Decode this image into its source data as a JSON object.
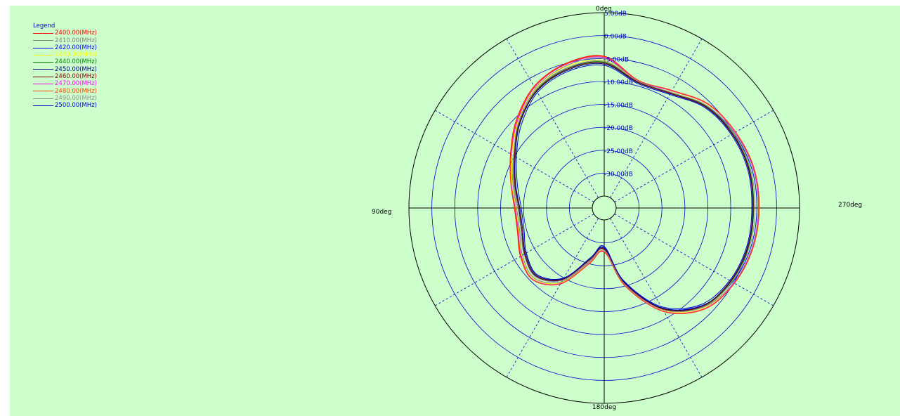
{
  "chart_data": {
    "type": "polar-line",
    "legend_title": "Legend",
    "legend_position": "top-left",
    "angle_labels": {
      "top": "0deg",
      "left": "90deg",
      "bottom": "180deg",
      "right": "270deg"
    },
    "angle_direction": "counter-clockwise from top (90deg on the left)",
    "radial_range_db": [
      -35,
      5
    ],
    "radial_ticks_db": [
      5,
      0,
      -5,
      -10,
      -15,
      -20,
      -25,
      -30
    ],
    "radial_tick_labels": [
      "5.00dB",
      "0.00dB",
      "-5.00dB",
      "-10.00dB",
      "-15.00dB",
      "-20.00dB",
      "-25.00dB",
      "-30.00dB"
    ],
    "grid": true,
    "angles_deg": [
      0,
      15,
      30,
      45,
      60,
      75,
      90,
      105,
      120,
      135,
      150,
      165,
      180,
      195,
      210,
      225,
      240,
      255,
      270,
      285,
      300,
      315,
      330,
      345
    ],
    "series": [
      {
        "name": "2400.00(MHz)",
        "color": "#ff0000",
        "values": [
          -4.5,
          -5.0,
          -7.0,
          -10.5,
          -14.0,
          -16.5,
          -18.0,
          -18.0,
          -16.5,
          -15.5,
          -18.5,
          -25.0,
          -28.0,
          -20.0,
          -11.5,
          -6.5,
          -4.8,
          -4.0,
          -3.8,
          -3.8,
          -4.5,
          -5.5,
          -8.0,
          -8.8
        ]
      },
      {
        "name": "2410.00(MHz)",
        "color": "#808080",
        "values": [
          -5.0,
          -5.5,
          -7.5,
          -11.0,
          -14.5,
          -17.0,
          -18.5,
          -18.5,
          -17.0,
          -16.0,
          -19.0,
          -25.5,
          -28.5,
          -20.5,
          -12.0,
          -7.0,
          -5.0,
          -4.2,
          -4.0,
          -4.0,
          -4.8,
          -6.0,
          -8.5,
          -9.0
        ]
      },
      {
        "name": "2420.00(MHz)",
        "color": "#0000ff",
        "values": [
          -6.0,
          -6.0,
          -7.8,
          -11.2,
          -15.0,
          -17.5,
          -19.0,
          -19.0,
          -17.5,
          -16.5,
          -19.5,
          -26.0,
          -29.0,
          -21.0,
          -12.5,
          -7.5,
          -5.3,
          -4.5,
          -4.3,
          -4.3,
          -5.0,
          -6.2,
          -8.7,
          -9.2
        ]
      },
      {
        "name": "2430.00(MHz)",
        "color": "#ffff00",
        "values": [
          -5.5,
          -5.7,
          -7.6,
          -11.0,
          -14.5,
          -16.8,
          -18.3,
          -18.3,
          -16.8,
          -15.8,
          -18.8,
          -25.2,
          -28.2,
          -20.2,
          -11.8,
          -6.8,
          -4.9,
          -4.1,
          -3.9,
          -3.9,
          -4.6,
          -5.7,
          -8.2,
          -8.9
        ]
      },
      {
        "name": "2440.00(MHz)",
        "color": "#008000",
        "values": [
          -5.8,
          -6.2,
          -8.0,
          -11.5,
          -14.8,
          -17.2,
          -18.8,
          -19.0,
          -17.6,
          -16.6,
          -19.6,
          -26.0,
          -28.6,
          -20.6,
          -12.2,
          -7.2,
          -5.6,
          -5.0,
          -5.0,
          -4.8,
          -5.2,
          -6.2,
          -8.6,
          -9.1
        ]
      },
      {
        "name": "2450.00(MHz)",
        "color": "#000080",
        "values": [
          -6.2,
          -6.5,
          -8.2,
          -11.6,
          -15.2,
          -17.6,
          -19.2,
          -19.2,
          -17.8,
          -16.8,
          -19.8,
          -26.2,
          -28.8,
          -20.8,
          -12.4,
          -7.4,
          -5.8,
          -5.2,
          -5.2,
          -5.0,
          -5.4,
          -6.4,
          -8.8,
          -9.3
        ]
      },
      {
        "name": "2460.00(MHz)",
        "color": "#800000",
        "values": [
          -6.0,
          -6.3,
          -8.1,
          -11.4,
          -15.0,
          -17.4,
          -19.0,
          -19.0,
          -17.6,
          -16.6,
          -19.6,
          -26.0,
          -28.6,
          -20.6,
          -12.2,
          -7.3,
          -5.7,
          -5.1,
          -5.1,
          -4.9,
          -5.3,
          -6.3,
          -8.7,
          -9.2
        ]
      },
      {
        "name": "2470.00(MHz)",
        "color": "#ff00ff",
        "values": [
          -4.8,
          -5.2,
          -7.2,
          -10.8,
          -14.2,
          -16.6,
          -18.2,
          -18.2,
          -16.7,
          -15.6,
          -18.6,
          -25.1,
          -28.1,
          -20.1,
          -11.6,
          -6.6,
          -4.9,
          -4.1,
          -3.9,
          -3.9,
          -4.6,
          -5.6,
          -8.1,
          -8.9
        ]
      },
      {
        "name": "2480.00(MHz)",
        "color": "#ff4400",
        "values": [
          -4.6,
          -5.1,
          -7.1,
          -10.6,
          -14.1,
          -16.5,
          -18.1,
          -18.1,
          -16.6,
          -15.5,
          -18.5,
          -25.0,
          -28.0,
          -20.0,
          -11.5,
          -6.5,
          -4.8,
          -4.0,
          -3.8,
          -3.8,
          -4.5,
          -5.5,
          -8.0,
          -8.8
        ]
      },
      {
        "name": "2490.00(MHz)",
        "color": "#909090",
        "values": [
          -5.6,
          -6.0,
          -7.8,
          -11.2,
          -14.8,
          -17.2,
          -18.8,
          -18.8,
          -17.4,
          -16.4,
          -19.4,
          -25.8,
          -28.4,
          -20.4,
          -12.0,
          -7.1,
          -5.4,
          -4.8,
          -4.7,
          -4.6,
          -5.0,
          -6.0,
          -8.5,
          -9.0
        ]
      },
      {
        "name": "2500.00(MHz)",
        "color": "#0000cc",
        "values": [
          -6.5,
          -6.8,
          -8.5,
          -12.0,
          -15.5,
          -18.0,
          -19.5,
          -19.5,
          -18.0,
          -17.0,
          -20.0,
          -26.5,
          -29.2,
          -21.2,
          -12.8,
          -7.8,
          -6.0,
          -5.4,
          -5.4,
          -5.2,
          -5.6,
          -6.6,
          -9.0,
          -9.5
        ]
      }
    ]
  }
}
